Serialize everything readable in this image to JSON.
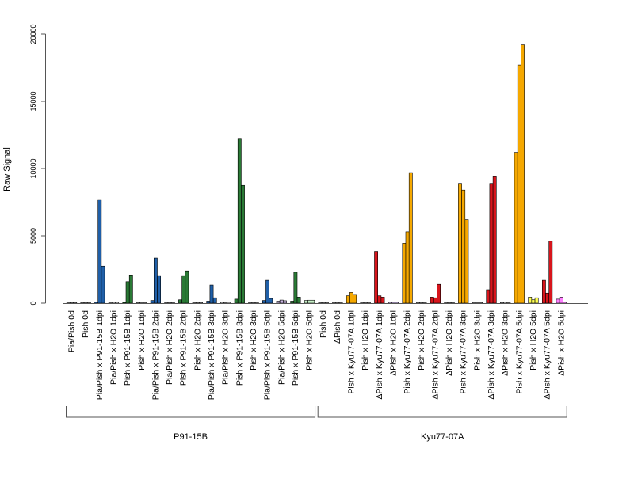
{
  "chart_data": {
    "type": "bar",
    "ylabel": "Raw Signal",
    "ylim": [
      0,
      20000
    ],
    "yticks": [
      0,
      5000,
      10000,
      15000,
      20000
    ],
    "grid": false,
    "colors": {
      "grey": "#c8c8c8",
      "blue": "#1f5fa8",
      "green": "#2a7a35",
      "orange": "#f5a800",
      "red": "#d7151c",
      "yellow": "#ffff55",
      "lavender": "#c8b4e0",
      "pink": "#ff80ff",
      "mint": "#c8f0c8"
    },
    "groups": [
      {
        "label": "Pia/Pish 0d",
        "color": "grey",
        "values": [
          30,
          30,
          30
        ]
      },
      {
        "label": "Pish 0d",
        "color": "grey",
        "values": [
          30,
          30,
          30
        ]
      },
      {
        "label": "Pia/Pish x P91-15B 1dpi",
        "color": "blue",
        "values": [
          100,
          7700,
          2750
        ]
      },
      {
        "label": "Pia/Pish x H2O 1dpi",
        "color": "grey",
        "values": [
          60,
          80,
          80
        ]
      },
      {
        "label": "Pish x P91-15B 1dpi",
        "color": "green",
        "values": [
          60,
          1600,
          2100
        ]
      },
      {
        "label": "Pish x H2O 1dpi",
        "color": "grey",
        "values": [
          50,
          60,
          60
        ]
      },
      {
        "label": "Pia/Pish x P91-15B 2dpi",
        "color": "blue",
        "values": [
          200,
          3350,
          2050
        ]
      },
      {
        "label": "Pia/Pish x H2O 2dpi",
        "color": "grey",
        "values": [
          40,
          50,
          50
        ]
      },
      {
        "label": "Pish x P91-15B 2dpi",
        "color": "green",
        "values": [
          250,
          2050,
          2400
        ]
      },
      {
        "label": "Pish x H2O 2dpi",
        "color": "grey",
        "values": [
          40,
          40,
          40
        ]
      },
      {
        "label": "Pia/Pish x P91-15B 3dpi",
        "color": "blue",
        "values": [
          150,
          1350,
          400
        ]
      },
      {
        "label": "Pia/Pish x H2O 3dpi",
        "color": "grey",
        "values": [
          80,
          60,
          90
        ]
      },
      {
        "label": "Pish x P91-15B 3dpi",
        "color": "green",
        "values": [
          300,
          12250,
          8750
        ]
      },
      {
        "label": "Pish x H2O 3dpi",
        "color": "grey",
        "values": [
          50,
          50,
          60
        ]
      },
      {
        "label": "Pia/Pish x P91-15B 5dpi",
        "color": "blue",
        "values": [
          200,
          1700,
          350
        ]
      },
      {
        "label": "Pia/Pish x H2O 5dpi",
        "color": "lavender",
        "values": [
          150,
          230,
          180
        ]
      },
      {
        "label": "Pish x P91-15B 5dpi",
        "color": "green",
        "values": [
          150,
          2300,
          450
        ]
      },
      {
        "label": "Pish x H2O 5dpi",
        "color": "mint",
        "values": [
          200,
          220,
          220
        ]
      },
      {
        "label": "Pish 0d",
        "color": "grey",
        "values": [
          30,
          30,
          30
        ]
      },
      {
        "label": "ΔPish 0d",
        "color": "grey",
        "values": [
          30,
          30,
          30
        ]
      },
      {
        "label": "Pish x Kyu77-07A 1dpi",
        "color": "orange",
        "values": [
          550,
          800,
          650
        ]
      },
      {
        "label": "Pish x H2O 1dpi",
        "color": "grey",
        "values": [
          60,
          60,
          60
        ]
      },
      {
        "label": "ΔPish x Kyu77-07A 1dpi",
        "color": "red",
        "values": [
          3850,
          550,
          450
        ]
      },
      {
        "label": "ΔPish x H2O 1dpi",
        "color": "lavender",
        "values": [
          80,
          100,
          80
        ]
      },
      {
        "label": "Pish x Kyu77-07A 2dpi",
        "color": "orange",
        "values": [
          4450,
          5300,
          9700
        ]
      },
      {
        "label": "Pish x H2O 2dpi",
        "color": "grey",
        "values": [
          30,
          30,
          30
        ]
      },
      {
        "label": "ΔPish x Kyu77-07A 2dpi",
        "color": "red",
        "values": [
          450,
          400,
          1400
        ]
      },
      {
        "label": "ΔPish x H2O 2dpi",
        "color": "grey",
        "values": [
          60,
          40,
          40
        ]
      },
      {
        "label": "Pish x Kyu77-07A 3dpi",
        "color": "orange",
        "values": [
          8900,
          8400,
          6200
        ]
      },
      {
        "label": "Pish x H2O 3dpi",
        "color": "grey",
        "values": [
          60,
          60,
          60
        ]
      },
      {
        "label": "ΔPish x Kyu77-07A 3dpi",
        "color": "red",
        "values": [
          1000,
          8900,
          9450
        ]
      },
      {
        "label": "ΔPish x H2O 3dpi",
        "color": "grey",
        "values": [
          50,
          80,
          50
        ]
      },
      {
        "label": "Pish x Kyu77-07A 5dpi",
        "color": "orange",
        "values": [
          11200,
          17700,
          19200
        ]
      },
      {
        "label": "Pish x H2O 5dpi",
        "color": "yellow",
        "values": [
          450,
          250,
          400
        ]
      },
      {
        "label": "ΔPish x Kyu77-07A 5dpi",
        "color": "red",
        "values": [
          1700,
          750,
          4600
        ]
      },
      {
        "label": "ΔPish x H2O 5dpi",
        "color": "pink",
        "values": [
          300,
          450,
          100
        ]
      }
    ],
    "strains": [
      {
        "label": "P91-15B",
        "from": 0,
        "to": 17
      },
      {
        "label": "Kyu77-07A",
        "from": 18,
        "to": 35
      }
    ]
  }
}
